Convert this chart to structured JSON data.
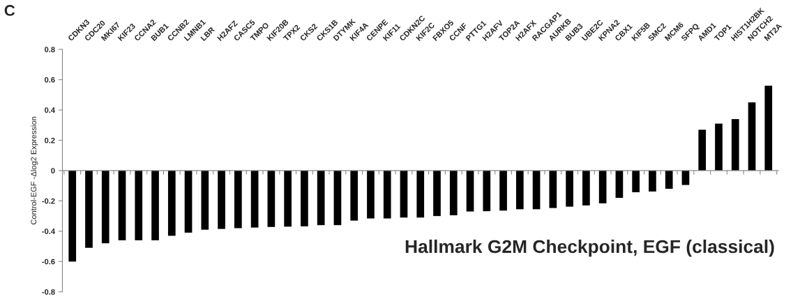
{
  "chart_data": {
    "type": "bar",
    "ylabel": "Control-EGF -Δlog2 Expression",
    "annotations": [
      "C",
      "Hallmark G2M Checkpoint, EGF (classical)"
    ],
    "categories": [
      "CDKN3",
      "CDC20",
      "MKI67",
      "KIF23",
      "CCNA2",
      "BUB1",
      "CCNB2",
      "LMNB1",
      "LBR",
      "H2AFZ",
      "CASC5",
      "TMPO",
      "KIF20B",
      "TPX2",
      "CKS2",
      "CKS1B",
      "DTYMK",
      "KIF4A",
      "CENPE",
      "KIF11",
      "CDKN2C",
      "KIF2C",
      "FBXO5",
      "CCNF",
      "PTTG1",
      "H2AFV",
      "TOP2A",
      "H2AFX",
      "RACGAP1",
      "AURKB",
      "BUB3",
      "UBE2C",
      "KPNA2",
      "CBX1",
      "KIF5B",
      "SMC2",
      "MCM6",
      "SFPQ",
      "AMD1",
      "TOP1",
      "HIST1H2BK",
      "NOTCH2",
      "MT2A"
    ],
    "series": [
      {
        "color": "#000000",
        "values": [
          -0.6,
          -0.51,
          -0.48,
          -0.46,
          -0.46,
          -0.46,
          -0.43,
          -0.41,
          -0.39,
          -0.385,
          -0.38,
          -0.376,
          -0.372,
          -0.37,
          -0.368,
          -0.36,
          -0.36,
          -0.33,
          -0.316,
          -0.316,
          -0.31,
          -0.31,
          -0.3,
          -0.295,
          -0.27,
          -0.268,
          -0.264,
          -0.255,
          -0.255,
          -0.247,
          -0.238,
          -0.23,
          -0.216,
          -0.18,
          -0.143,
          -0.138,
          -0.12,
          -0.095,
          0.27,
          0.31,
          0.34,
          0.45,
          0.56
        ]
      }
    ],
    "ylim": [
      -0.8,
      0.8
    ],
    "yticks": [
      -0.8,
      -0.6,
      -0.4,
      -0.2,
      0,
      0.2,
      0.4,
      0.6,
      0.8
    ]
  }
}
